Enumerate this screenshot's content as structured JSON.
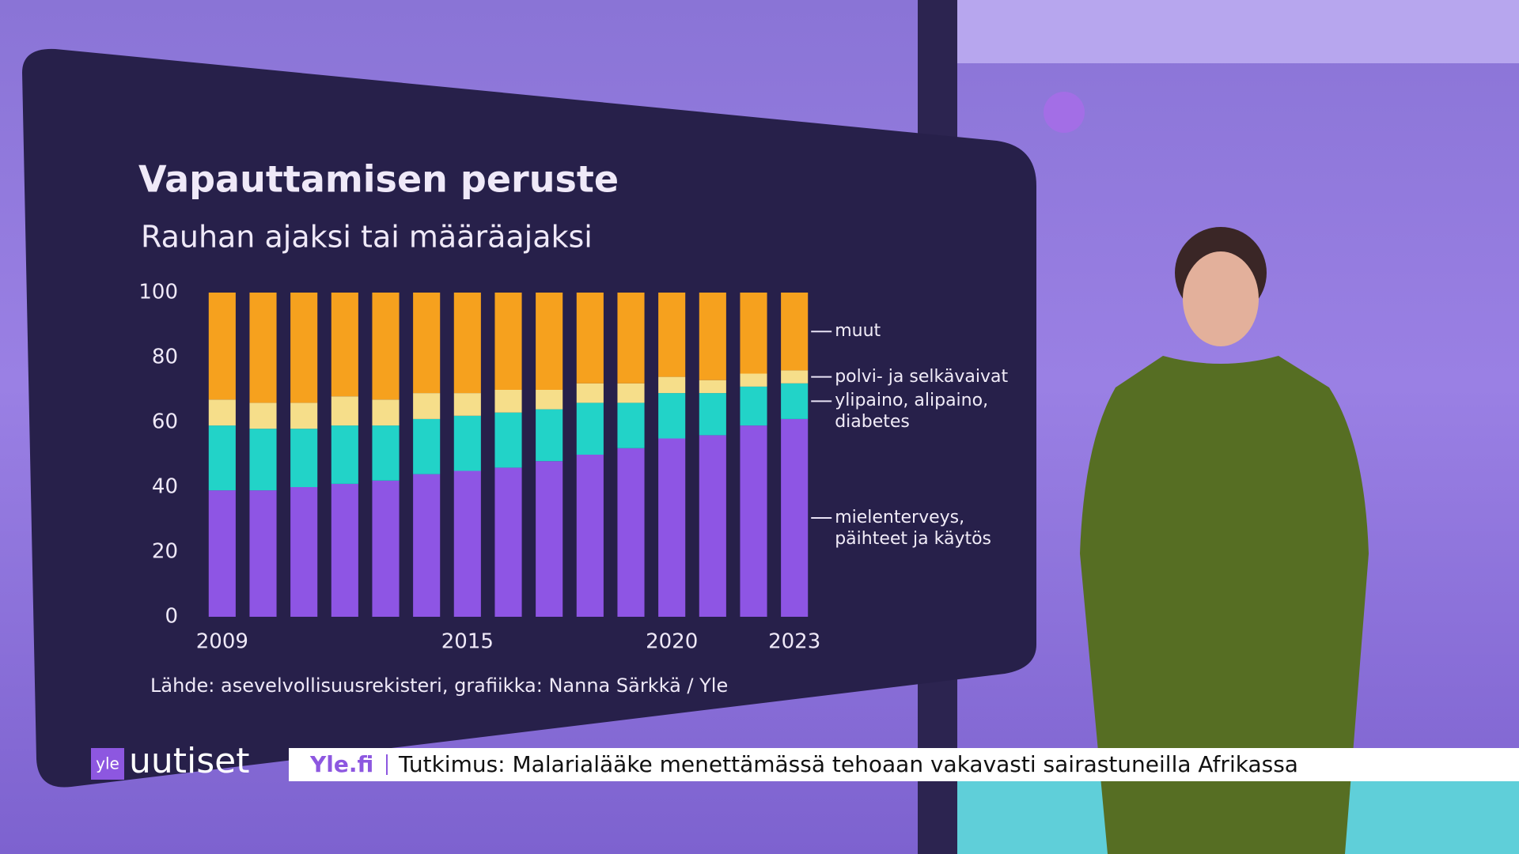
{
  "chart_data": {
    "type": "stacked_bar",
    "title": "Vapauttamisen peruste",
    "subtitle": "Rauhan ajaksi tai määräajaksi",
    "source": "Lähde: asevelvollisuusrekisteri, grafiikka: Nanna Särkkä / Yle",
    "categories": [
      "2009",
      null,
      null,
      null,
      null,
      null,
      "2015",
      null,
      null,
      null,
      null,
      "2020",
      null,
      null,
      "2023"
    ],
    "series": [
      {
        "name": "mielenterveys, päihteet ja käytös",
        "color": "#8e55e4",
        "values": [
          39,
          39,
          40,
          41,
          42,
          44,
          45,
          46,
          48,
          50,
          52,
          55,
          56,
          59,
          61
        ]
      },
      {
        "name": "ylipaino, alipaino, diabetes",
        "color": "#22d3c8",
        "values": [
          20,
          19,
          18,
          18,
          17,
          17,
          17,
          17,
          16,
          16,
          14,
          14,
          13,
          12,
          11
        ]
      },
      {
        "name": "polvi- ja selkävaivat",
        "color": "#f6de8a",
        "values": [
          8,
          8,
          8,
          9,
          8,
          8,
          7,
          7,
          6,
          6,
          6,
          5,
          4,
          4,
          4
        ]
      },
      {
        "name": "muut",
        "color": "#f6a11e",
        "values": [
          33,
          34,
          34,
          32,
          33,
          31,
          31,
          30,
          30,
          28,
          28,
          26,
          27,
          25,
          24
        ]
      }
    ],
    "ylim": [
      0,
      100
    ],
    "yticks": [
      0,
      20,
      40,
      60,
      80,
      100
    ],
    "grid": false,
    "legend": "right"
  },
  "ticker": {
    "logo": "yle",
    "brand": "uutiset",
    "site": "Yle.fi",
    "headline": "Tutkimus: Malarialääke menettämässä tehoaan vakavasti sairastuneilla Afrikassa"
  }
}
